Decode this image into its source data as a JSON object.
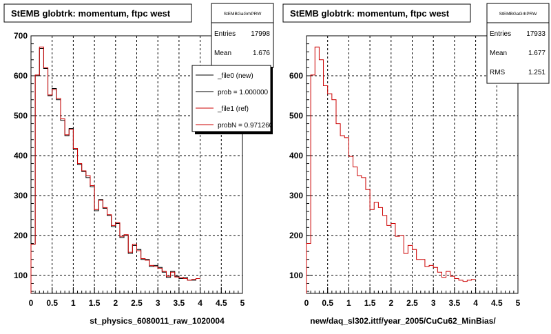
{
  "chart_data": [
    {
      "type": "histogram",
      "title": "StEMB globtrk: momentum, ftpc west",
      "xlabel": "st_physics_6080011_raw_1020004",
      "ylabel": "",
      "xlim": [
        0,
        5
      ],
      "ylim": [
        55,
        700
      ],
      "x_ticks": [
        "0",
        "0.5",
        "1",
        "1.5",
        "2",
        "2.5",
        "3",
        "3.5",
        "4",
        "4.5",
        "5"
      ],
      "y_ticks": [
        "100",
        "200",
        "300",
        "400",
        "500",
        "600",
        "700"
      ],
      "grid": true,
      "stats": {
        "name": "StEMBGaGrhPRW",
        "entries_label": "Entries",
        "entries": "17998",
        "mean_label": "Mean",
        "mean": "1.676"
      },
      "legend": {
        "position": "top-right",
        "entries": [
          "_file0 (new)",
          "prob = 1.000000",
          "_file1 (ref)",
          "probN = 0.971260"
        ]
      },
      "bin_width": 0.1,
      "series": [
        {
          "name": "_file0 (new)",
          "color": "#000000",
          "values": [
            178,
            600,
            668,
            618,
            550,
            568,
            540,
            488,
            450,
            468,
            415,
            378,
            360,
            345,
            322,
            262,
            290,
            268,
            250,
            222,
            230,
            195,
            200,
            155,
            175,
            165,
            140,
            140,
            122,
            125,
            120,
            108,
            95,
            110,
            98,
            92,
            95,
            88,
            88,
            92
          ]
        },
        {
          "name": "_file1 (ref)",
          "color": "#cc0000",
          "values": [
            178,
            602,
            672,
            620,
            552,
            565,
            543,
            492,
            452,
            465,
            418,
            380,
            362,
            350,
            325,
            265,
            288,
            270,
            252,
            225,
            232,
            198,
            202,
            158,
            178,
            162,
            142,
            138,
            125,
            122,
            118,
            110,
            98,
            108,
            96,
            95,
            92,
            88,
            90,
            92
          ]
        }
      ]
    },
    {
      "type": "histogram",
      "title": "StEMB globtrk: momentum, ftpc west",
      "xlabel": "new/daq_sl302.ittf/year_2005/CuCu62_MinBias/",
      "ylabel": "",
      "xlim": [
        0,
        5
      ],
      "ylim": [
        55,
        700
      ],
      "x_ticks": [
        "0",
        "0.5",
        "1",
        "1.5",
        "2",
        "2.5",
        "3",
        "3.5",
        "4",
        "4.5",
        "5"
      ],
      "y_ticks": [
        "100",
        "200",
        "300",
        "400",
        "500",
        "600"
      ],
      "grid": true,
      "stats": {
        "name": "StEMBGaGrhPRW",
        "entries_label": "Entries",
        "entries": "17933",
        "mean_label": "Mean",
        "mean": "1.677",
        "rms_label": "RMS",
        "rms": "1.251"
      },
      "bin_width": 0.1,
      "series": [
        {
          "name": "",
          "color": "#cc0000",
          "values": [
            180,
            602,
            672,
            640,
            575,
            555,
            540,
            480,
            450,
            445,
            398,
            372,
            350,
            345,
            315,
            265,
            283,
            270,
            250,
            225,
            230,
            198,
            200,
            155,
            175,
            165,
            140,
            140,
            122,
            125,
            120,
            108,
            95,
            110,
            98,
            92,
            88,
            85,
            88,
            90
          ]
        }
      ]
    }
  ]
}
